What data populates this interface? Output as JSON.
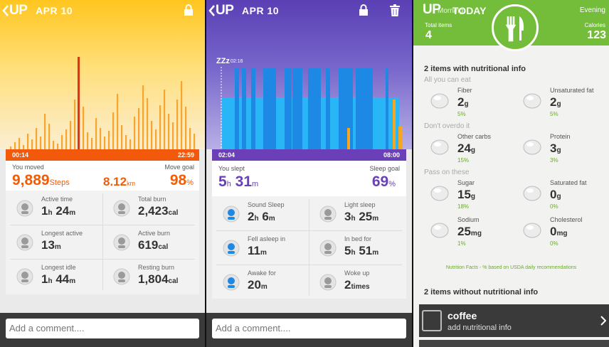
{
  "colors": {
    "move_orange": "#f25c05",
    "sleep_purple": "#6a3fb7",
    "food_green": "#73bd3b"
  },
  "activity": {
    "logo": "UP",
    "date": "APR 10",
    "icons": [
      "chevron-left-icon",
      "lock-icon"
    ],
    "start_time": "00:14",
    "end_time": "22:59",
    "moved_label": "You moved",
    "goal_label": "Move goal",
    "steps": "9,889",
    "steps_unit": "Steps",
    "distance": "8.12",
    "distance_unit": "km",
    "goal_pct": "98",
    "goal_unit": "%",
    "stats": [
      {
        "label": "Active time",
        "v1": "1",
        "u1": "h",
        "v2": "24",
        "u2": "m",
        "icon": "runner-icon"
      },
      {
        "label": "Total burn",
        "v1": "2,423",
        "u1": "cal",
        "v2": "",
        "u2": "",
        "icon": "flame-icon"
      },
      {
        "label": "Longest active",
        "v1": "13",
        "u1": "m",
        "v2": "",
        "u2": "",
        "icon": "runner-timer-icon"
      },
      {
        "label": "Active burn",
        "v1": "619",
        "u1": "cal",
        "v2": "",
        "u2": "",
        "icon": "runner-flame-icon"
      },
      {
        "label": "Longest idle",
        "v1": "1",
        "u1": "h",
        "v2": "44",
        "u2": "m",
        "icon": "couch-timer-icon"
      },
      {
        "label": "Resting burn",
        "v1": "1,804",
        "u1": "cal",
        "v2": "",
        "u2": "",
        "icon": "couch-flame-icon"
      }
    ],
    "comment_placeholder": "Add a comment...."
  },
  "sleep": {
    "logo": "UP",
    "date": "APR 10",
    "icons": [
      "chevron-left-icon",
      "lock-icon",
      "trash-icon"
    ],
    "zzz": "ZZz",
    "sleep_start_marker": "02:16",
    "start_time": "02:04",
    "end_time": "08:00",
    "slept_label": "You slept",
    "goal_label": "Sleep goal",
    "hours": "5",
    "hours_unit": "h",
    "minutes": "31",
    "minutes_unit": "m",
    "goal_pct": "69",
    "goal_unit": "%",
    "stats": [
      {
        "label": "Sound Sleep",
        "v1": "2",
        "u1": "h",
        "v2": "6",
        "u2": "m",
        "icon": "sound-sleep-icon"
      },
      {
        "label": "Light sleep",
        "v1": "3",
        "u1": "h",
        "v2": "25",
        "u2": "m",
        "icon": "light-sleep-icon"
      },
      {
        "label": "Fell asleep in",
        "v1": "11",
        "u1": "m",
        "v2": "",
        "u2": "",
        "icon": "fell-asleep-icon"
      },
      {
        "label": "In bed for",
        "v1": "5",
        "u1": "h",
        "v2": "51",
        "u2": "m",
        "icon": "bed-icon"
      },
      {
        "label": "Awake for",
        "v1": "20",
        "u1": "m",
        "v2": "",
        "u2": "",
        "icon": "awake-icon"
      },
      {
        "label": "Woke up",
        "v1": "2",
        "u1": "times",
        "v2": "",
        "u2": "",
        "icon": "woke-up-icon"
      }
    ],
    "comment_placeholder": "Add a comment...."
  },
  "food": {
    "logo": "UP",
    "title": "TODAY",
    "left_label": "Morning",
    "right_label": "Evening",
    "total_items_label": "Total items",
    "total_items": "4",
    "calories_label": "Calories",
    "calories": "123",
    "icon": "fork-knife-icon",
    "with_info_heading": "2 items with nutritional info",
    "groups": [
      {
        "name": "All you can eat",
        "items": [
          {
            "label": "Fiber",
            "value": "2",
            "unit": "g",
            "pct": "5%",
            "icon": "apple-icon"
          },
          {
            "label": "Unsaturated fat",
            "value": "2",
            "unit": "g",
            "pct": "5%",
            "icon": "oil-drops-icon"
          }
        ]
      },
      {
        "name": "Don't overdo it",
        "items": [
          {
            "label": "Other carbs",
            "value": "24",
            "unit": "g",
            "pct": "15%",
            "icon": "bread-icon"
          },
          {
            "label": "Protein",
            "value": "3",
            "unit": "g",
            "pct": "3%",
            "icon": "meat-icon"
          }
        ]
      },
      {
        "name": "Pass on these",
        "items": [
          {
            "label": "Sugar",
            "value": "15",
            "unit": "g",
            "pct": "18%",
            "icon": "sugar-icon"
          },
          {
            "label": "Saturated fat",
            "value": "0",
            "unit": "g",
            "pct": "0%",
            "icon": "butter-icon"
          },
          {
            "label": "Sodium",
            "value": "25",
            "unit": "mg",
            "pct": "1%",
            "icon": "salt-shaker-icon"
          },
          {
            "label": "Cholesterol",
            "value": "0",
            "unit": "mg",
            "pct": "0%",
            "icon": "egg-icon"
          }
        ]
      }
    ],
    "footnote": "Nutrition Facts - % based on USDA daily recommendations",
    "without_info_heading": "2 items without nutritional info",
    "entry_name": "coffee",
    "entry_sub": "add nutritional info"
  }
}
